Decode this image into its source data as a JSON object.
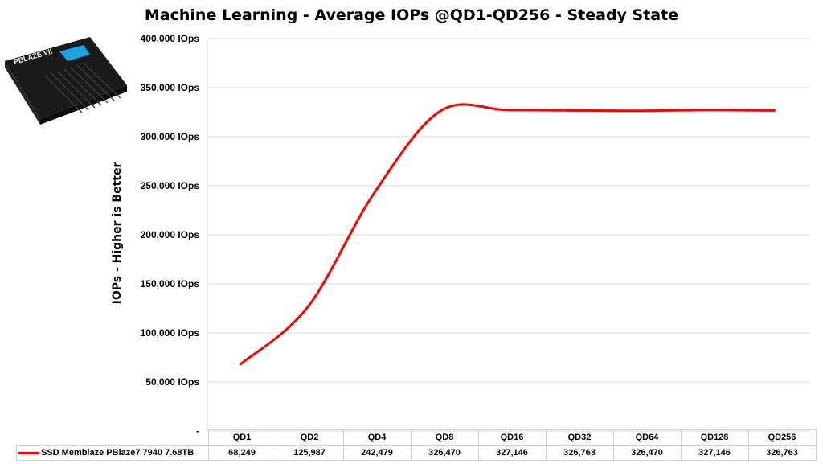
{
  "chart_data": {
    "type": "line",
    "title": "Machine Learning - Average IOPs @QD1-QD256 - Steady State",
    "ylabel": "IOPs  -  Higher is Better",
    "xlabel": "",
    "categories": [
      "QD1",
      "QD2",
      "QD4",
      "QD8",
      "QD16",
      "QD32",
      "QD64",
      "QD128",
      "QD256"
    ],
    "series": [
      {
        "name": "SSD Memblaze PBlaze7 7940 7.68TB",
        "color": "#ff0000",
        "values": [
          68249,
          125987,
          242479,
          326470,
          327146,
          326763,
          326470,
          327146,
          326763
        ],
        "labels": [
          "68,249",
          "125,987",
          "242,479",
          "326,470",
          "327,146",
          "326,763",
          "326,470",
          "327,146",
          "326,763"
        ]
      }
    ],
    "ylim": [
      0,
      400000
    ],
    "yticks": [
      0,
      50000,
      100000,
      150000,
      200000,
      250000,
      300000,
      350000,
      400000
    ],
    "ytick_labels": [
      "-",
      "50,000 IOps",
      "100,000 IOps",
      "150,000 IOps",
      "200,000 IOps",
      "250,000 IOps",
      "300,000 IOps",
      "350,000 IOps",
      "400,000 IOps"
    ],
    "grid": true,
    "legend": "data-table"
  },
  "product_image": {
    "label": "PBLAZE VII"
  }
}
